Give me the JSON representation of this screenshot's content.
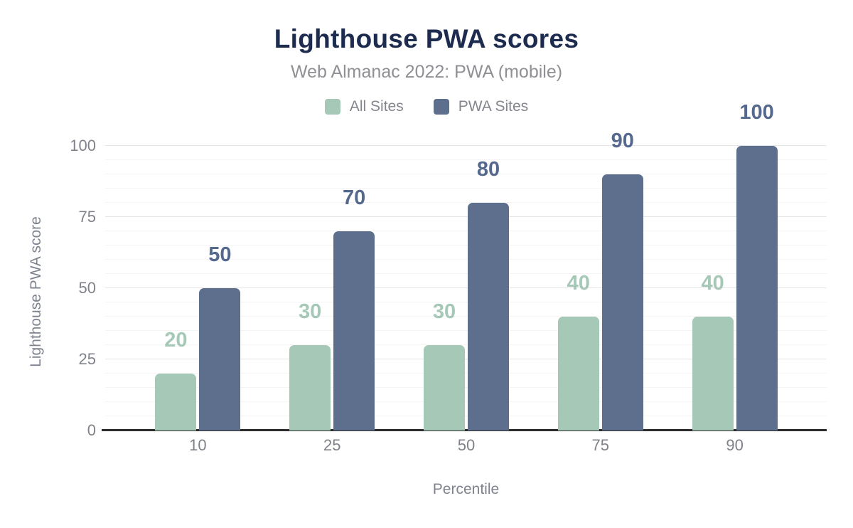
{
  "header": {
    "title": "Lighthouse PWA scores",
    "subtitle": "Web Almanac 2022: PWA (mobile)"
  },
  "legend": {
    "items": [
      {
        "label": "All Sites",
        "color": "#a6c8b7"
      },
      {
        "label": "PWA Sites",
        "color": "#5d6f8d"
      }
    ]
  },
  "chart_data": {
    "type": "bar",
    "title": "Lighthouse PWA scores",
    "subtitle": "Web Almanac 2022: PWA (mobile)",
    "categories": [
      "10",
      "25",
      "50",
      "75",
      "90"
    ],
    "series": [
      {
        "name": "All Sites",
        "color": "#a6c8b7",
        "label_color": "#a6c8b7",
        "values": [
          20,
          30,
          30,
          40,
          40
        ]
      },
      {
        "name": "PWA Sites",
        "color": "#5d6f8d",
        "label_color": "#55698f",
        "values": [
          50,
          70,
          80,
          90,
          100
        ]
      }
    ],
    "xlabel": "Percentile",
    "ylabel": "Lighthouse PWA score",
    "ylim": [
      0,
      100
    ],
    "yticks": [
      0,
      25,
      50,
      75,
      100
    ],
    "minor_grid_step": 5,
    "major_grid_step": 25,
    "grid": true,
    "legend_position": "top",
    "bar_value_labels": true
  },
  "colors": {
    "title": "#1d2b4e",
    "subtitle": "#8f9095",
    "legend_text": "#83868d",
    "tick_text": "#7f828a",
    "axis_title_text": "#7e838d",
    "axis_line": "#2c2c2c",
    "grid_major": "#e5e5e5",
    "grid_minor": "#f4f4f4"
  }
}
